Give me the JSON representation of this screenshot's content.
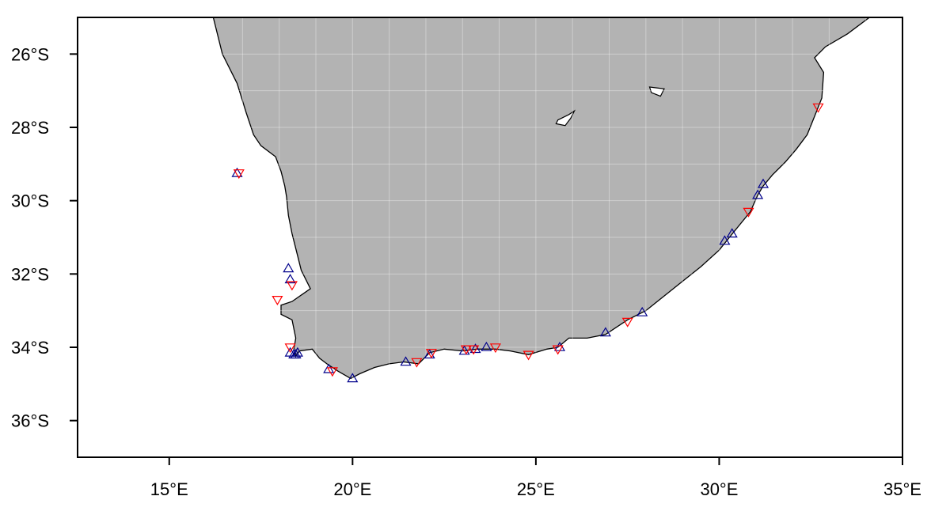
{
  "chart_data": {
    "type": "scatter",
    "title": "",
    "xlabel": "",
    "ylabel": "",
    "xlim": [
      12.5,
      35
    ],
    "ylim": [
      -37,
      -25
    ],
    "grid": true,
    "land_color": "#b3b3b3",
    "x_ticks": [
      {
        "value": 15,
        "label": "15°E"
      },
      {
        "value": 20,
        "label": "20°E"
      },
      {
        "value": 25,
        "label": "25°E"
      },
      {
        "value": 30,
        "label": "30°E"
      },
      {
        "value": 35,
        "label": "35°E"
      }
    ],
    "y_ticks": [
      {
        "value": -26,
        "label": "26°S"
      },
      {
        "value": -28,
        "label": "28°S"
      },
      {
        "value": -30,
        "label": "30°S"
      },
      {
        "value": -32,
        "label": "32°S"
      },
      {
        "value": -34,
        "label": "34°S"
      },
      {
        "value": -36,
        "label": "36°S"
      }
    ],
    "coastline": [
      [
        12.5,
        -25.0
      ],
      [
        16.2,
        -25.0
      ],
      [
        16.45,
        -26.0
      ],
      [
        16.85,
        -26.8
      ],
      [
        17.1,
        -27.6
      ],
      [
        17.3,
        -28.2
      ],
      [
        17.5,
        -28.5
      ],
      [
        17.9,
        -28.8
      ],
      [
        18.05,
        -29.2
      ],
      [
        18.15,
        -29.6
      ],
      [
        18.2,
        -29.9
      ],
      [
        18.25,
        -30.4
      ],
      [
        18.35,
        -30.9
      ],
      [
        18.5,
        -31.5
      ],
      [
        18.6,
        -31.9
      ],
      [
        18.85,
        -32.4
      ],
      [
        18.35,
        -32.75
      ],
      [
        18.05,
        -32.85
      ],
      [
        18.05,
        -33.1
      ],
      [
        18.35,
        -33.25
      ],
      [
        18.45,
        -33.75
      ],
      [
        18.4,
        -34.05
      ],
      [
        18.45,
        -34.25
      ],
      [
        18.55,
        -34.1
      ],
      [
        18.9,
        -34.05
      ],
      [
        19.1,
        -34.3
      ],
      [
        19.3,
        -34.45
      ],
      [
        19.6,
        -34.65
      ],
      [
        19.95,
        -34.85
      ],
      [
        20.2,
        -34.72
      ],
      [
        20.6,
        -34.55
      ],
      [
        21.0,
        -34.45
      ],
      [
        21.4,
        -34.4
      ],
      [
        21.8,
        -34.45
      ],
      [
        22.1,
        -34.15
      ],
      [
        22.5,
        -34.05
      ],
      [
        23.0,
        -34.1
      ],
      [
        23.4,
        -34.05
      ],
      [
        23.9,
        -34.05
      ],
      [
        24.3,
        -34.1
      ],
      [
        24.8,
        -34.2
      ],
      [
        25.3,
        -34.05
      ],
      [
        25.6,
        -34.0
      ],
      [
        25.9,
        -33.75
      ],
      [
        26.4,
        -33.75
      ],
      [
        26.9,
        -33.65
      ],
      [
        27.5,
        -33.25
      ],
      [
        28.0,
        -33.0
      ],
      [
        28.5,
        -32.6
      ],
      [
        29.0,
        -32.2
      ],
      [
        29.5,
        -31.8
      ],
      [
        30.0,
        -31.35
      ],
      [
        30.2,
        -31.1
      ],
      [
        30.4,
        -30.85
      ],
      [
        30.85,
        -30.3
      ],
      [
        31.05,
        -29.85
      ],
      [
        31.2,
        -29.6
      ],
      [
        31.45,
        -29.3
      ],
      [
        31.8,
        -28.95
      ],
      [
        32.1,
        -28.6
      ],
      [
        32.4,
        -28.2
      ],
      [
        32.6,
        -27.7
      ],
      [
        32.8,
        -27.2
      ],
      [
        32.85,
        -26.5
      ],
      [
        32.6,
        -26.1
      ],
      [
        32.9,
        -25.8
      ],
      [
        33.5,
        -25.45
      ],
      [
        34.1,
        -25.0
      ],
      [
        35.0,
        -25.0
      ]
    ],
    "lakes": [
      [
        [
          25.6,
          -27.8
        ],
        [
          25.9,
          -27.65
        ],
        [
          26.05,
          -27.55
        ],
        [
          25.95,
          -27.75
        ],
        [
          25.8,
          -27.95
        ],
        [
          25.55,
          -27.9
        ]
      ],
      [
        [
          28.1,
          -26.9
        ],
        [
          28.5,
          -26.95
        ],
        [
          28.4,
          -27.15
        ],
        [
          28.15,
          -27.05
        ]
      ]
    ],
    "series": [
      {
        "marker": "triangle-up",
        "color": "#00008b",
        "points": [
          [
            16.85,
            -29.25
          ],
          [
            18.25,
            -31.85
          ],
          [
            18.3,
            -32.15
          ],
          [
            18.3,
            -34.15
          ],
          [
            18.4,
            -34.2
          ],
          [
            18.45,
            -34.2
          ],
          [
            18.5,
            -34.15
          ],
          [
            19.35,
            -34.6
          ],
          [
            20.0,
            -34.85
          ],
          [
            21.45,
            -34.4
          ],
          [
            22.1,
            -34.2
          ],
          [
            23.05,
            -34.1
          ],
          [
            23.35,
            -34.05
          ],
          [
            23.65,
            -34.0
          ],
          [
            25.65,
            -34.0
          ],
          [
            26.9,
            -33.6
          ],
          [
            27.9,
            -33.05
          ],
          [
            30.15,
            -31.1
          ],
          [
            30.35,
            -30.9
          ],
          [
            31.05,
            -29.85
          ],
          [
            31.2,
            -29.55
          ]
        ]
      },
      {
        "marker": "triangle-down",
        "color": "#ff0000",
        "points": [
          [
            16.9,
            -29.25
          ],
          [
            18.35,
            -32.3
          ],
          [
            17.95,
            -32.7
          ],
          [
            18.3,
            -34.0
          ],
          [
            19.45,
            -34.65
          ],
          [
            21.75,
            -34.4
          ],
          [
            22.15,
            -34.15
          ],
          [
            23.1,
            -34.05
          ],
          [
            23.3,
            -34.05
          ],
          [
            23.9,
            -34.0
          ],
          [
            24.8,
            -34.2
          ],
          [
            25.6,
            -34.05
          ],
          [
            27.5,
            -33.3
          ],
          [
            30.8,
            -30.3
          ],
          [
            32.7,
            -27.45
          ]
        ]
      }
    ]
  }
}
